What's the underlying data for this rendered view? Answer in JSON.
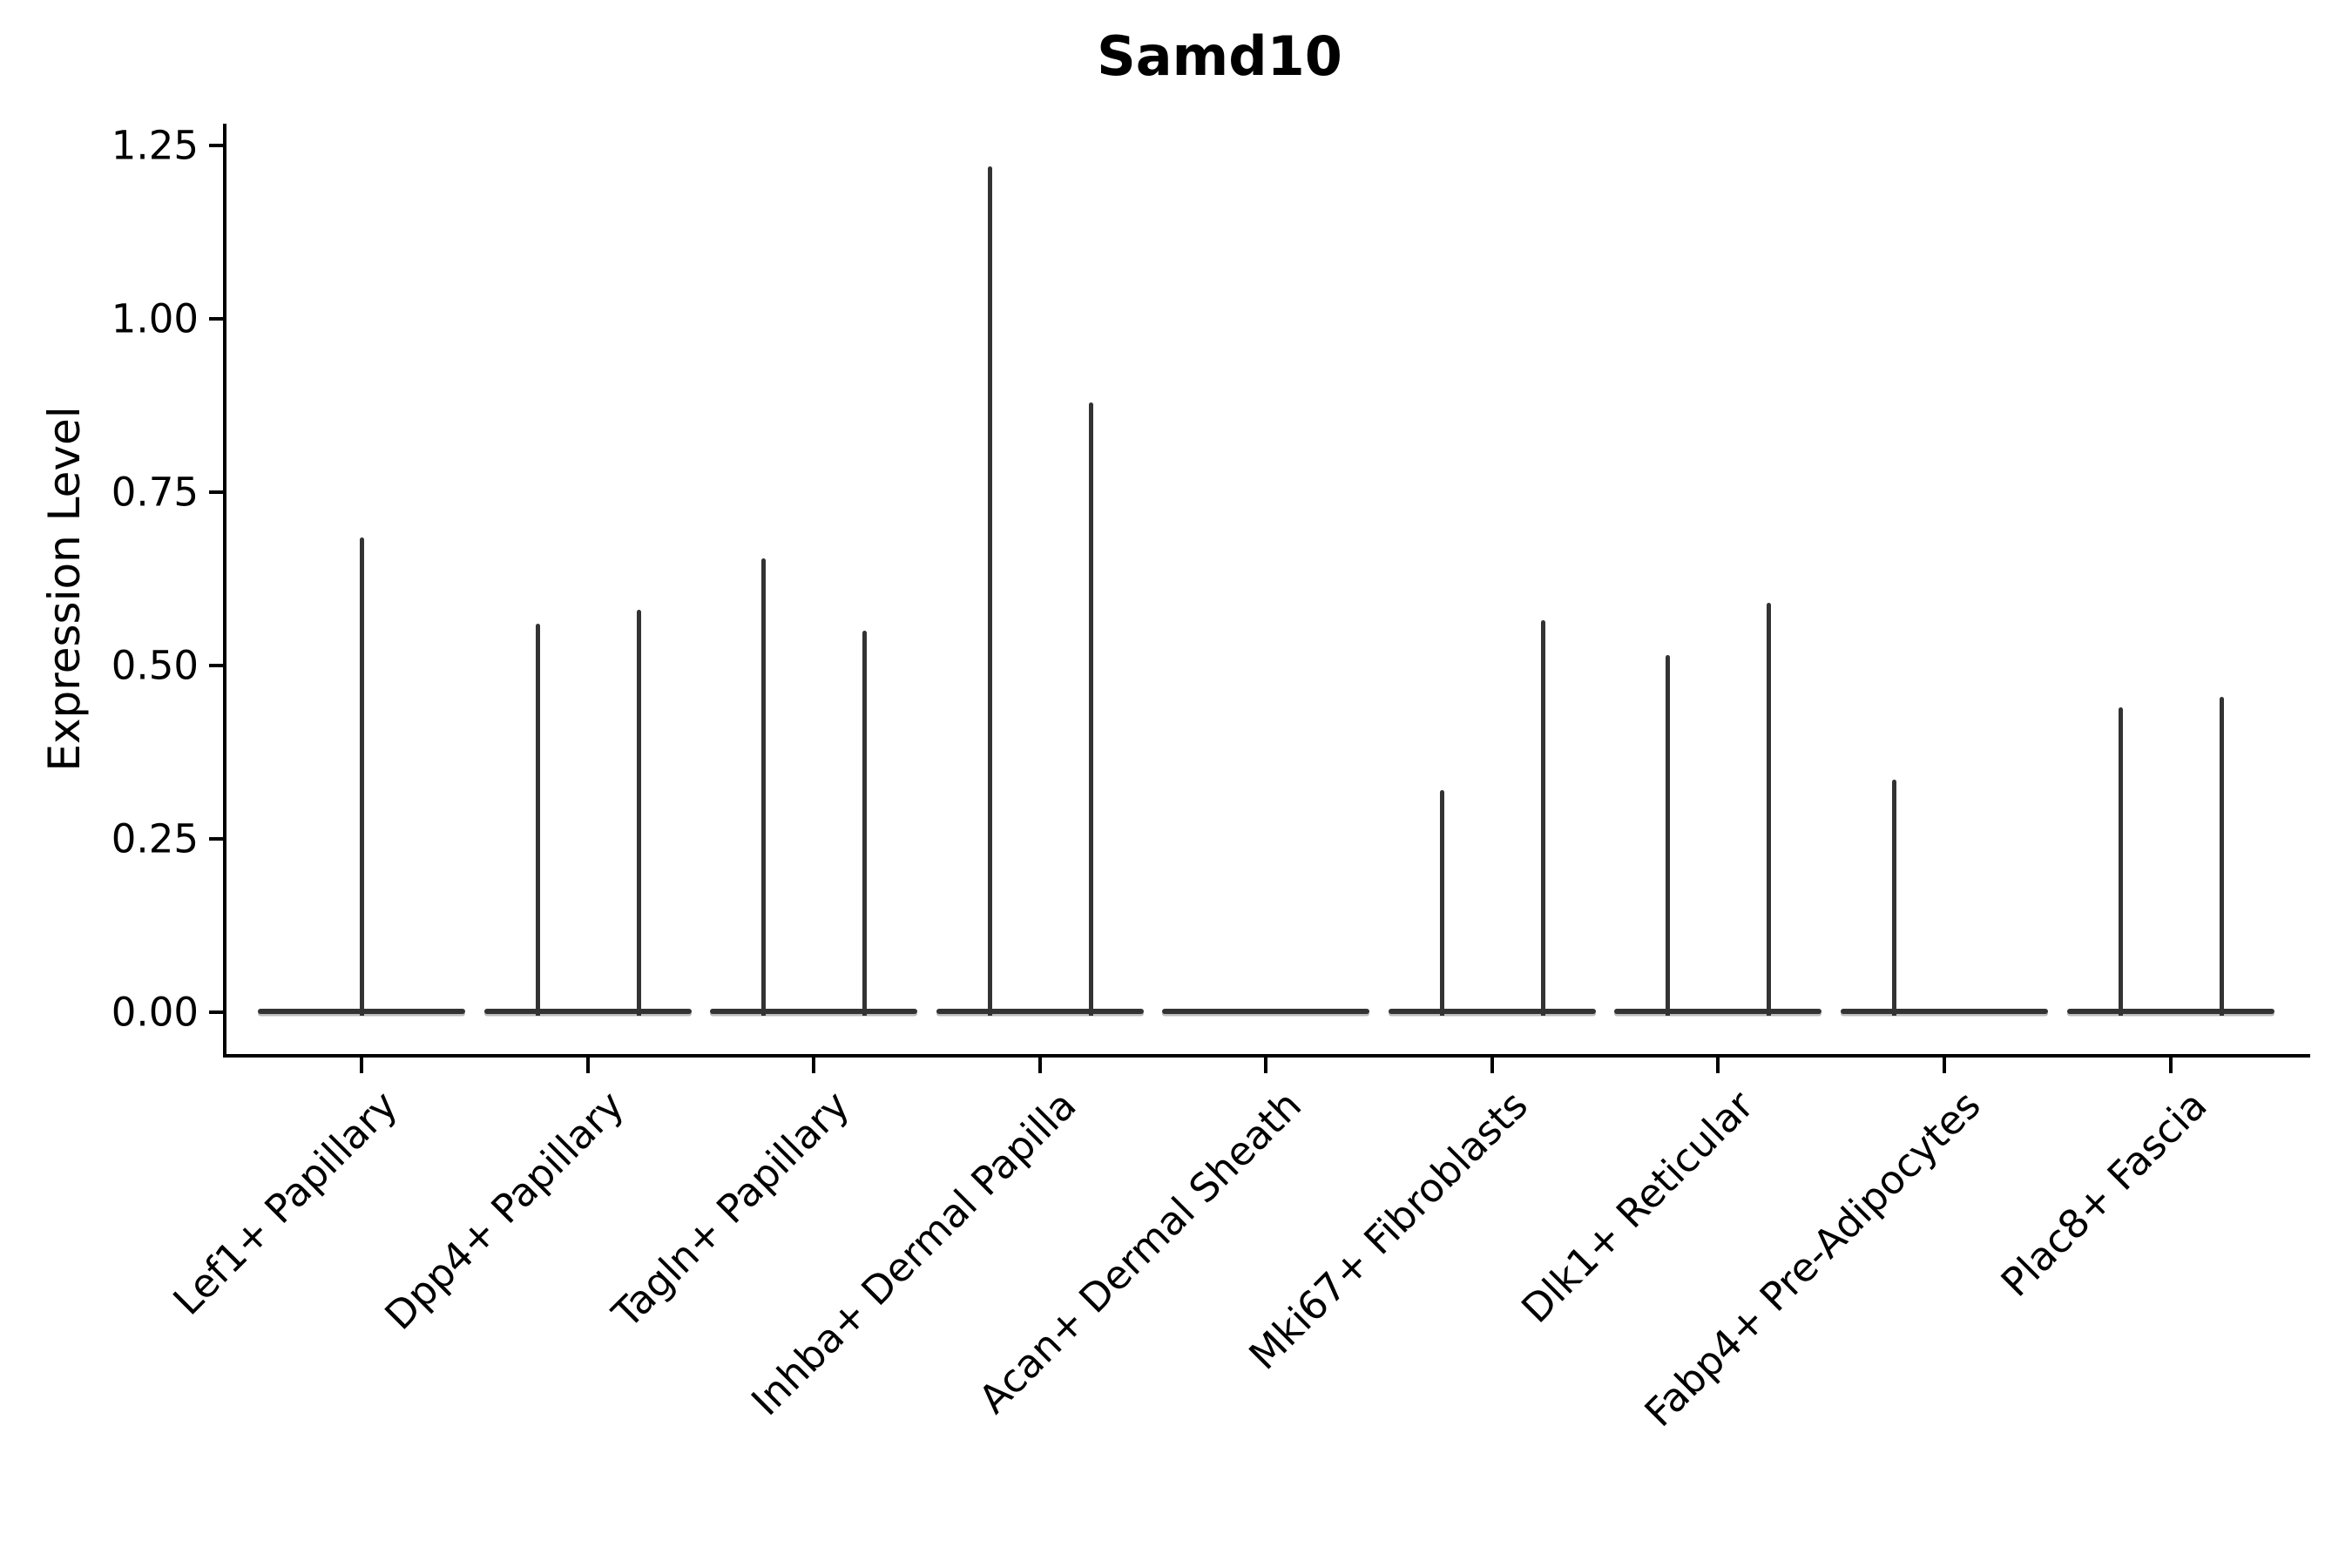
{
  "chart_data": {
    "type": "violin",
    "title": "Samd10",
    "ylabel": "Expression Level",
    "xlabel": "",
    "grid": false,
    "legend_position": "none",
    "ylim": [
      -0.06,
      1.28
    ],
    "yticks": [
      {
        "value": 0.0,
        "label": "0.00"
      },
      {
        "value": 0.25,
        "label": "0.25"
      },
      {
        "value": 0.5,
        "label": "0.50"
      },
      {
        "value": 0.75,
        "label": "0.75"
      },
      {
        "value": 1.0,
        "label": "1.00"
      },
      {
        "value": 1.25,
        "label": "1.25"
      }
    ],
    "categories": [
      "Lef1+ Papillary",
      "Dpp4+ Papillary",
      "Tagln+ Papillary",
      "Inhba+ Dermal Papilla",
      "Acan+ Dermal Sheath",
      "Mki67+ Fibroblasts",
      "Dlk1+ Reticular",
      "Fabp4+ Pre-Adipocytes",
      "Plac8+ Fascia"
    ],
    "groups": [
      {
        "category": "Lef1+ Papillary",
        "violins": [
          {
            "slot": "center",
            "min": 0,
            "max": 0.685
          }
        ]
      },
      {
        "category": "Dpp4+ Papillary",
        "violins": [
          {
            "slot": "left",
            "min": 0,
            "max": 0.56
          },
          {
            "slot": "right",
            "min": 0,
            "max": 0.58
          }
        ]
      },
      {
        "category": "Tagln+ Papillary",
        "violins": [
          {
            "slot": "left",
            "min": 0,
            "max": 0.655
          },
          {
            "slot": "right",
            "min": 0,
            "max": 0.55
          }
        ]
      },
      {
        "category": "Inhba+ Dermal Papilla",
        "violins": [
          {
            "slot": "left",
            "min": 0,
            "max": 1.22
          },
          {
            "slot": "right",
            "min": 0,
            "max": 0.88
          }
        ]
      },
      {
        "category": "Acan+ Dermal Sheath",
        "violins": []
      },
      {
        "category": "Mki67+ Fibroblasts",
        "violins": [
          {
            "slot": "left",
            "min": 0,
            "max": 0.32
          },
          {
            "slot": "right",
            "min": 0,
            "max": 0.565
          }
        ]
      },
      {
        "category": "Dlk1+ Reticular",
        "violins": [
          {
            "slot": "left",
            "min": 0,
            "max": 0.515
          },
          {
            "slot": "right",
            "min": 0,
            "max": 0.59
          }
        ]
      },
      {
        "category": "Fabp4+ Pre-Adipocytes",
        "violins": [
          {
            "slot": "left",
            "min": 0,
            "max": 0.335
          }
        ]
      },
      {
        "category": "Plac8+ Fascia",
        "violins": [
          {
            "slot": "left",
            "min": 0,
            "max": 0.44
          },
          {
            "slot": "right",
            "min": 0,
            "max": 0.455
          }
        ]
      }
    ],
    "colors": {
      "violin": "#333333",
      "axis": "#000000",
      "text": "#000000",
      "background": "#ffffff"
    }
  }
}
